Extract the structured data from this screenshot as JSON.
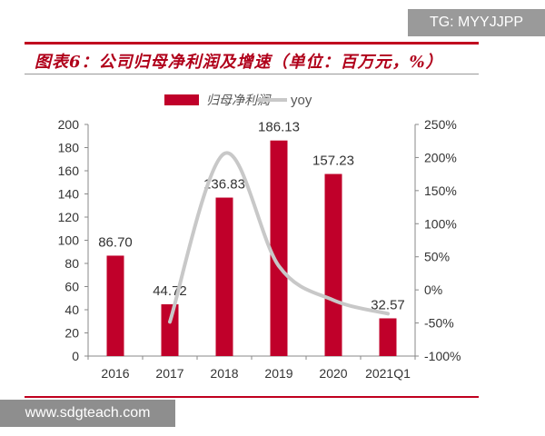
{
  "watermark_top": "TG: MYYJJPP",
  "watermark_bottom": "www.sdgteach.com",
  "chart_data": {
    "type": "bar",
    "title": "图表6：公司归母净利润及增速（单位：百万元，%）",
    "categories": [
      "2016",
      "2017",
      "2018",
      "2019",
      "2020",
      "2021Q1"
    ],
    "series": [
      {
        "name": "归母净利润",
        "type": "bar",
        "axis": "left",
        "values": [
          86.7,
          44.72,
          136.83,
          186.13,
          157.23,
          32.57
        ],
        "color": "#c0002a"
      },
      {
        "name": "yoy",
        "type": "line",
        "axis": "right",
        "values": [
          null,
          -48.4,
          206,
          36,
          -15.5,
          -36
        ],
        "color": "#c8c8c8"
      }
    ],
    "data_labels": [
      "86.70",
      "44.72",
      "136.83",
      "186.13",
      "157.23",
      "32.57"
    ],
    "ylim_left": [
      0,
      200
    ],
    "yticks_left": [
      "0",
      "20",
      "40",
      "60",
      "80",
      "100",
      "120",
      "140",
      "160",
      "180",
      "200"
    ],
    "ylim_right": [
      -100,
      250
    ],
    "yticks_right": [
      "-100%",
      "-50%",
      "0%",
      "50%",
      "100%",
      "150%",
      "200%",
      "250%"
    ],
    "legend": "top",
    "grid": false
  }
}
